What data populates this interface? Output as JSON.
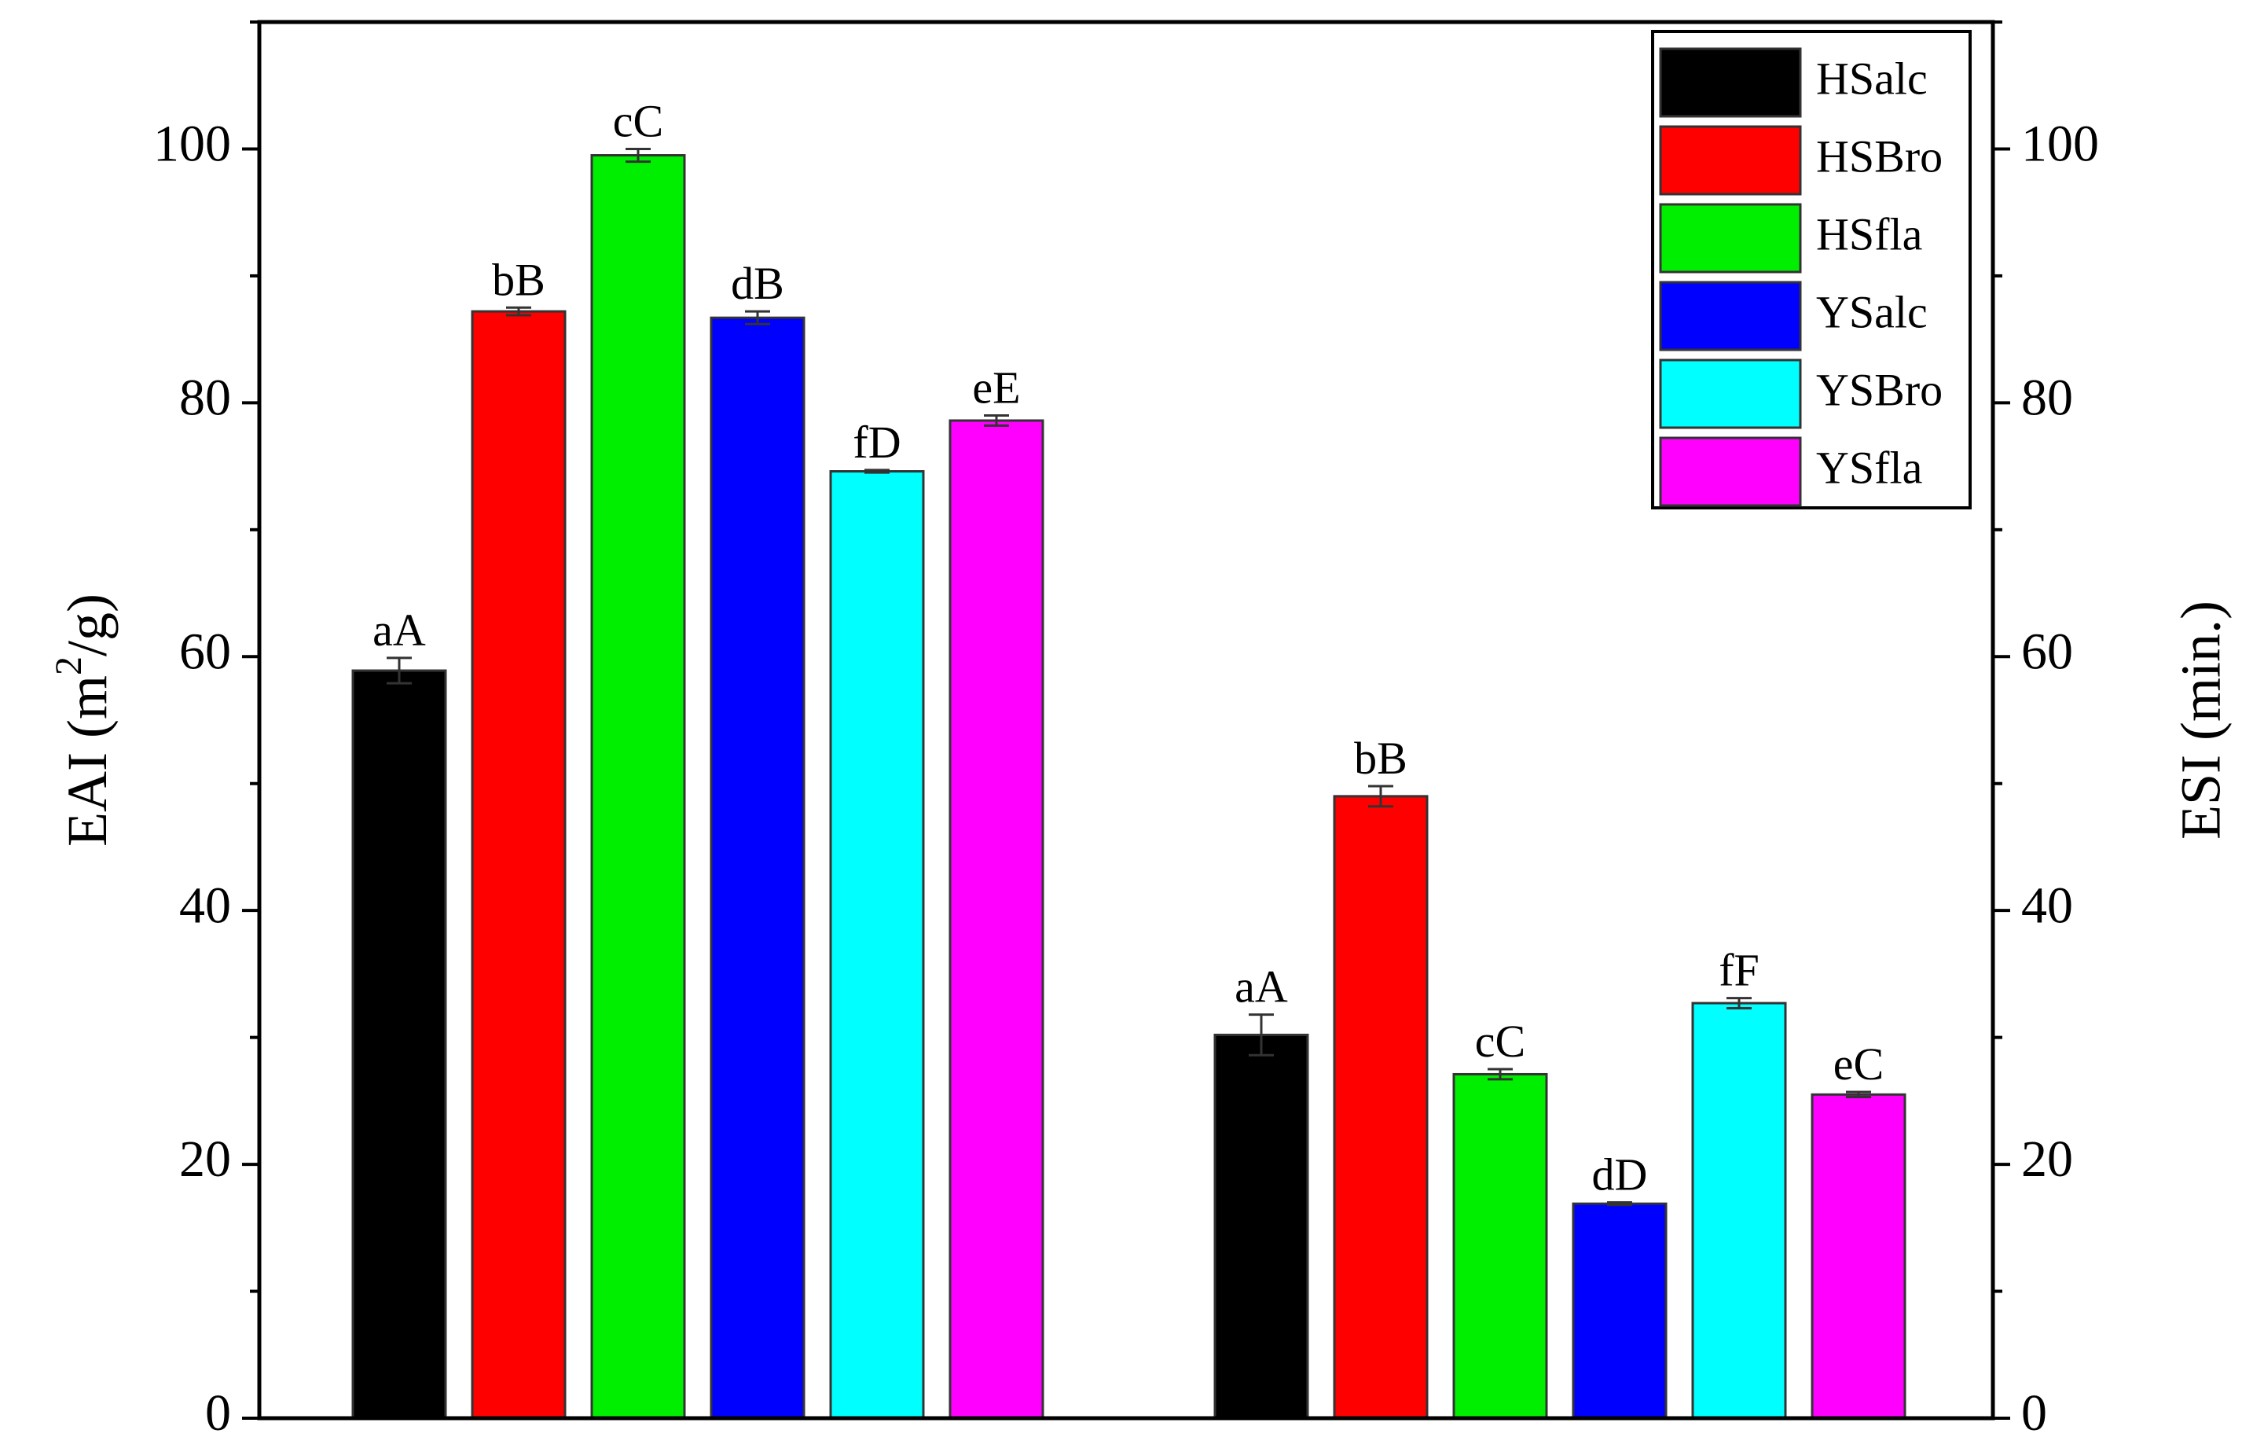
{
  "chart_data": {
    "type": "bar",
    "categories": [
      "",
      ""
    ],
    "left_axis": {
      "label": "EAI (m²/g)",
      "ylim": [
        0,
        110
      ],
      "ticks": [
        0,
        20,
        40,
        60,
        80,
        100
      ]
    },
    "right_axis": {
      "label": "ESI (min.)",
      "ylim": [
        0,
        110
      ],
      "ticks": [
        0,
        20,
        40,
        60,
        80,
        100
      ]
    },
    "legend_position": "top-right",
    "series": [
      {
        "name": "HSalc",
        "color": "#000000",
        "values": [
          58.9,
          30.2
        ],
        "errors": [
          1.0,
          1.6
        ],
        "labels": [
          "aA",
          "aA"
        ]
      },
      {
        "name": "HSBro",
        "color": "#ff0000",
        "values": [
          87.2,
          49.0
        ],
        "errors": [
          0.3,
          0.8
        ],
        "labels": [
          "bB",
          "bB"
        ]
      },
      {
        "name": "HSfla",
        "color": "#00ee00",
        "values": [
          99.5,
          27.1
        ],
        "errors": [
          0.5,
          0.4
        ],
        "labels": [
          "cC",
          "cC"
        ]
      },
      {
        "name": "YSalc",
        "color": "#0000ff",
        "values": [
          86.7,
          16.9
        ],
        "errors": [
          0.5,
          0.1
        ],
        "labels": [
          "dB",
          "dD"
        ]
      },
      {
        "name": "YSBro",
        "color": "#00ffff",
        "values": [
          74.6,
          32.7
        ],
        "errors": [
          0.1,
          0.4
        ],
        "labels": [
          "fD",
          "fF"
        ]
      },
      {
        "name": "YSfla",
        "color": "#ff00ff",
        "values": [
          78.6,
          25.5
        ],
        "errors": [
          0.4,
          0.2
        ],
        "labels": [
          "eE",
          "eC"
        ]
      }
    ]
  }
}
